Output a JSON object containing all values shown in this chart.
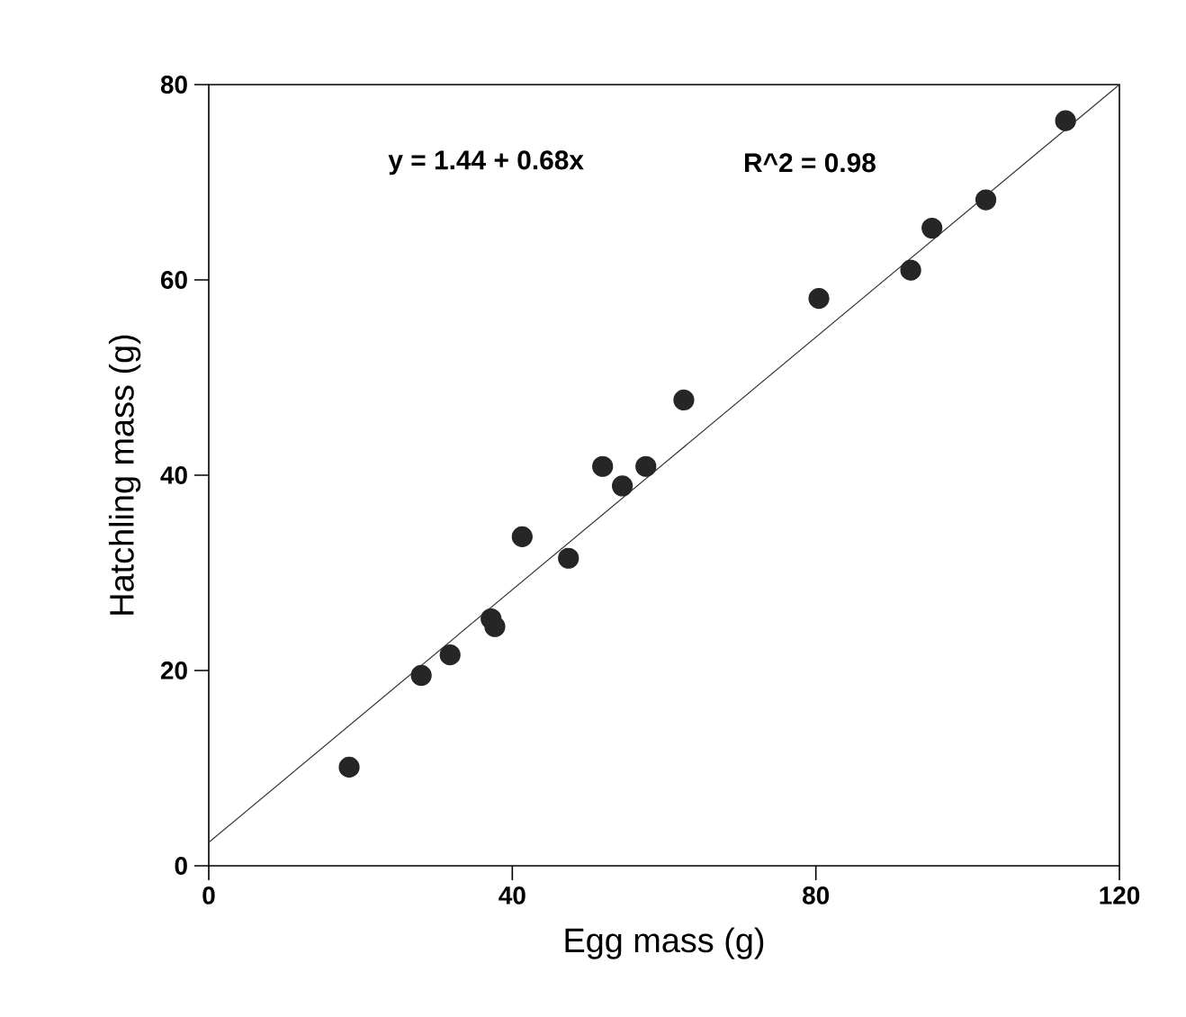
{
  "chart_data": {
    "type": "scatter",
    "xlabel": "Egg mass (g)",
    "ylabel": "Hatchling mass (g)",
    "annotations": [
      "y = 1.44 + 0.68x",
      "R^2 = 0.98"
    ],
    "xlim": [
      0,
      120
    ],
    "ylim": [
      0,
      80
    ],
    "xticks": [
      0,
      40,
      80,
      120
    ],
    "yticks": [
      0,
      20,
      40,
      60,
      80
    ],
    "grid": false,
    "series": [
      {
        "marker": "circle",
        "color": "#262626",
        "x": [
          18.5,
          28,
          31.8,
          37.2,
          37.7,
          41.3,
          47.4,
          51.9,
          54.5,
          57.6,
          62.6,
          80.4,
          92.5,
          95.3,
          102.4,
          112.9
        ],
        "values": [
          10.1,
          19.5,
          21.6,
          25.3,
          24.5,
          33.7,
          31.5,
          40.9,
          38.9,
          40.9,
          47.7,
          58.1,
          61,
          65.3,
          68.2,
          76.3
        ]
      },
      {
        "type": "line",
        "marker": "none",
        "line_style": "solid",
        "color": "#333333",
        "x": [
          0,
          120
        ],
        "values": [
          2.4,
          80
        ]
      }
    ]
  }
}
